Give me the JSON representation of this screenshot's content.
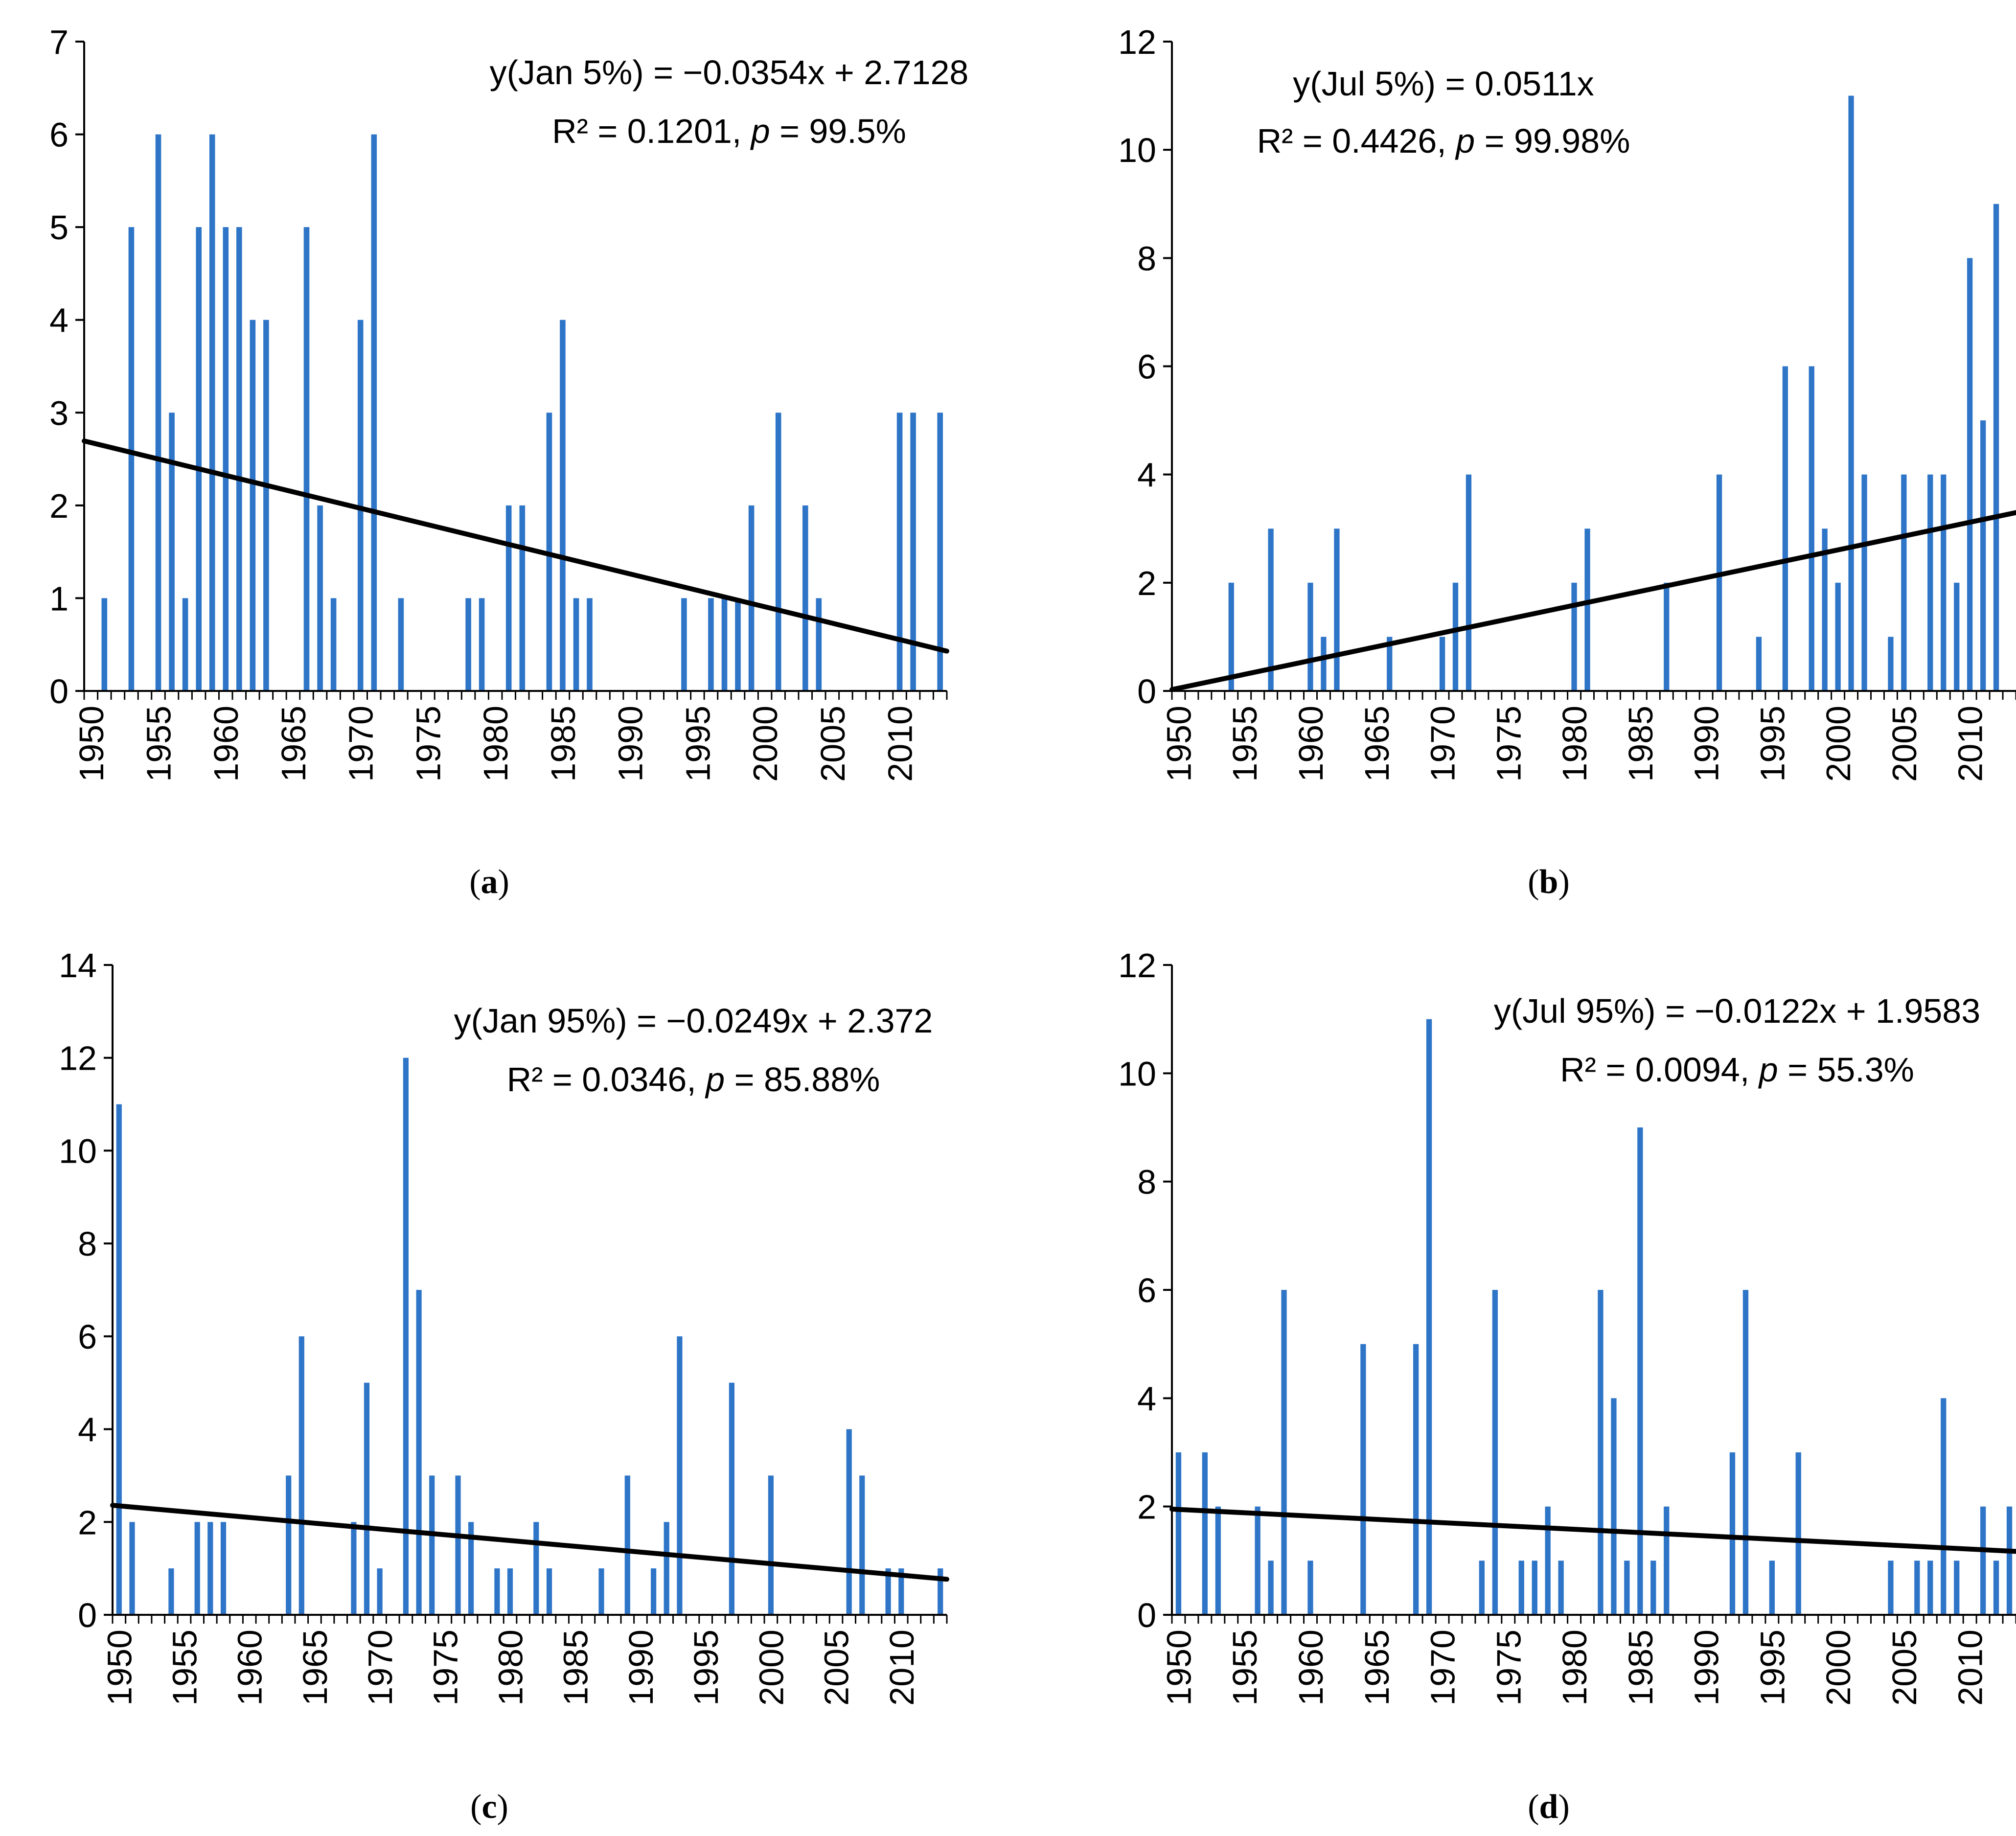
{
  "colors": {
    "bar": "#2E75C8",
    "trendline": "#000000",
    "axis": "#000000"
  },
  "chart_data": [
    {
      "panel": "a",
      "type": "bar",
      "panel_label": "a",
      "x_range": [
        1950,
        2013
      ],
      "x_ticks": [
        1950,
        1955,
        1960,
        1965,
        1970,
        1975,
        1980,
        1985,
        1990,
        1995,
        2000,
        2005,
        2010
      ],
      "ylim": [
        0,
        7
      ],
      "y_ticks": [
        0,
        1,
        2,
        3,
        4,
        5,
        6,
        7
      ],
      "equation": {
        "line1": "y(Jan 5%) = −0.0354x + 2.7128",
        "line2_prefix": "R² = 0.1201, ",
        "line2_p": "p",
        "line2_suffix": " = 99.5%"
      },
      "trend": {
        "slope": -0.0354,
        "intercept": 2.7128
      },
      "series": [
        {
          "name": "Jan 5%",
          "x": [
            1951,
            1953,
            1955,
            1956,
            1957,
            1958,
            1959,
            1960,
            1961,
            1962,
            1963,
            1966,
            1967,
            1968,
            1970,
            1971,
            1973,
            1978,
            1979,
            1981,
            1982,
            1984,
            1985,
            1986,
            1987,
            1994,
            1996,
            1997,
            1998,
            1999,
            2001,
            2003,
            2004,
            2010,
            2011,
            2013
          ],
          "values": [
            1,
            5,
            6,
            3,
            1,
            5,
            6,
            5,
            5,
            4,
            4,
            5,
            2,
            1,
            4,
            6,
            1,
            1,
            1,
            2,
            2,
            3,
            4,
            1,
            1,
            1,
            1,
            1,
            1,
            2,
            3,
            2,
            1,
            3,
            3,
            3
          ]
        }
      ]
    },
    {
      "panel": "b",
      "type": "bar",
      "panel_label": "b",
      "x_range": [
        1950,
        2013
      ],
      "x_ticks": [
        1950,
        1955,
        1960,
        1965,
        1970,
        1975,
        1980,
        1985,
        1990,
        1995,
        2000,
        2005,
        2010
      ],
      "ylim": [
        0,
        12
      ],
      "y_ticks": [
        0,
        2,
        4,
        6,
        8,
        10,
        12
      ],
      "equation": {
        "line1": "y(Jul 5%) = 0.0511x",
        "line2_prefix": "R² = 0.4426, ",
        "line2_p": "p",
        "line2_suffix": " = 99.98%"
      },
      "trend": {
        "slope": 0.0511,
        "intercept": 0
      },
      "series": [
        {
          "name": "Jul 5%",
          "x": [
            1954,
            1957,
            1960,
            1961,
            1962,
            1966,
            1970,
            1971,
            1972,
            1980,
            1981,
            1987,
            1991,
            1994,
            1996,
            1998,
            1999,
            2000,
            2001,
            2002,
            2004,
            2005,
            2007,
            2008,
            2009,
            2010,
            2011,
            2012
          ],
          "values": [
            2,
            3,
            2,
            1,
            3,
            1,
            1,
            2,
            4,
            2,
            3,
            2,
            4,
            1,
            6,
            6,
            3,
            2,
            11,
            4,
            1,
            4,
            4,
            4,
            2,
            8,
            5,
            9
          ]
        }
      ]
    },
    {
      "panel": "c",
      "type": "bar",
      "panel_label": "c",
      "x_range": [
        1950,
        2013
      ],
      "x_ticks": [
        1950,
        1955,
        1960,
        1965,
        1970,
        1975,
        1980,
        1985,
        1990,
        1995,
        2000,
        2005,
        2010
      ],
      "ylim": [
        0,
        14
      ],
      "y_ticks": [
        0,
        2,
        4,
        6,
        8,
        10,
        12,
        14
      ],
      "equation": {
        "line1": "y(Jan 95%) = −0.0249x + 2.372",
        "line2_prefix": "R² = 0.0346, ",
        "line2_p": "p",
        "line2_suffix": " = 85.88%"
      },
      "trend": {
        "slope": -0.0249,
        "intercept": 2.372
      },
      "series": [
        {
          "name": "Jan 95%",
          "x": [
            1950,
            1951,
            1954,
            1956,
            1957,
            1958,
            1963,
            1964,
            1968,
            1969,
            1970,
            1972,
            1973,
            1974,
            1976,
            1977,
            1979,
            1980,
            1982,
            1983,
            1987,
            1989,
            1991,
            1992,
            1993,
            1997,
            2000,
            2006,
            2007,
            2009,
            2010,
            2013
          ],
          "values": [
            11,
            2,
            1,
            2,
            2,
            2,
            3,
            6,
            2,
            5,
            1,
            12,
            7,
            3,
            3,
            2,
            1,
            1,
            2,
            1,
            1,
            3,
            1,
            2,
            6,
            5,
            3,
            4,
            3,
            1,
            1,
            1
          ]
        }
      ]
    },
    {
      "panel": "d",
      "type": "bar",
      "panel_label": "d",
      "x_range": [
        1950,
        2013
      ],
      "x_ticks": [
        1950,
        1955,
        1960,
        1965,
        1970,
        1975,
        1980,
        1985,
        1990,
        1995,
        2000,
        2005,
        2010
      ],
      "ylim": [
        0,
        12
      ],
      "y_ticks": [
        0,
        2,
        4,
        6,
        8,
        10,
        12
      ],
      "equation": {
        "line1": "y(Jul 95%) = −0.0122x + 1.9583",
        "line2_prefix": "R² = 0.0094, ",
        "line2_p": "p",
        "line2_suffix": " = 55.3%"
      },
      "trend": {
        "slope": -0.0122,
        "intercept": 1.9583
      },
      "series": [
        {
          "name": "Jul 95%",
          "x": [
            1950,
            1952,
            1953,
            1956,
            1957,
            1958,
            1960,
            1964,
            1968,
            1969,
            1973,
            1974,
            1976,
            1977,
            1978,
            1979,
            1982,
            1983,
            1984,
            1985,
            1986,
            1987,
            1992,
            1993,
            1995,
            1997,
            2004,
            2006,
            2007,
            2008,
            2009,
            2011,
            2012,
            2013
          ],
          "values": [
            3,
            3,
            2,
            2,
            1,
            6,
            1,
            5,
            5,
            11,
            1,
            6,
            1,
            1,
            2,
            1,
            6,
            4,
            1,
            9,
            1,
            2,
            3,
            6,
            1,
            3,
            1,
            1,
            1,
            4,
            1,
            2,
            1,
            2
          ]
        }
      ]
    }
  ]
}
